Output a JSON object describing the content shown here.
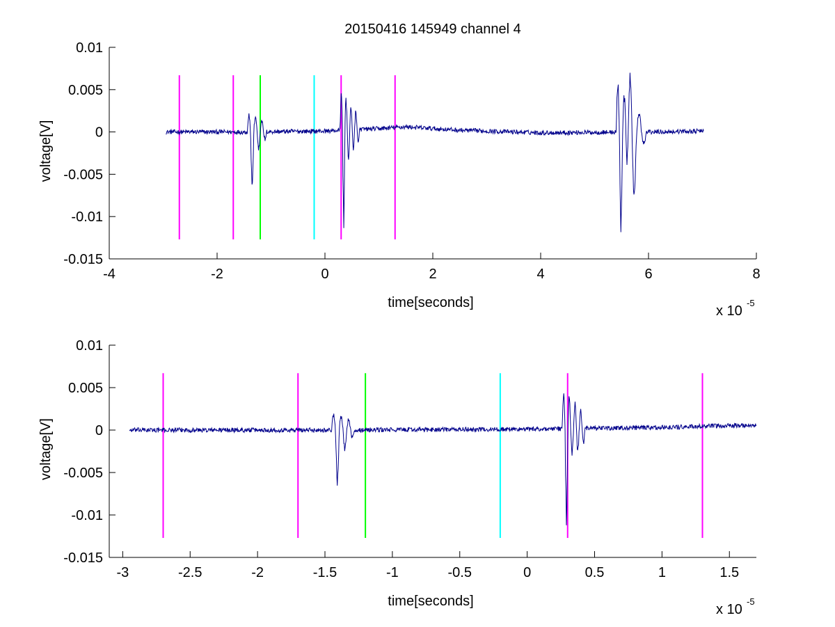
{
  "figure": {
    "title": "20150416 145949 channel 4",
    "colors": {
      "signal": "#00008b",
      "magenta": "#ff00ff",
      "green": "#00ff00",
      "cyan": "#00ffff",
      "axes": "#000000"
    }
  },
  "chart_data": [
    {
      "type": "line",
      "xlabel": "time[seconds]",
      "ylabel": "voltage[V]",
      "x_scale_label": "x 10",
      "x_scale_exponent": "-5",
      "xlim": [
        -4,
        8
      ],
      "ylim": [
        -0.015,
        0.01
      ],
      "xticks": [
        -4,
        -2,
        0,
        2,
        4,
        6,
        8
      ],
      "xtick_labels": [
        "-4",
        "-2",
        "0",
        "2",
        "4",
        "6",
        "8"
      ],
      "yticks": [
        -0.015,
        -0.01,
        -0.005,
        0,
        0.005,
        0.01
      ],
      "ytick_labels": [
        "-0.015",
        "-0.01",
        "-0.005",
        "0",
        "0.005",
        "0.01"
      ],
      "markers": [
        {
          "x": -2.7,
          "ymin": -0.0127,
          "ymax": 0.0067,
          "color": "magenta"
        },
        {
          "x": -1.7,
          "ymin": -0.0127,
          "ymax": 0.0067,
          "color": "magenta"
        },
        {
          "x": -1.2,
          "ymin": -0.0127,
          "ymax": 0.0067,
          "color": "green"
        },
        {
          "x": -0.2,
          "ymin": -0.0127,
          "ymax": 0.0067,
          "color": "cyan"
        },
        {
          "x": 0.3,
          "ymin": -0.0127,
          "ymax": 0.0067,
          "color": "magenta"
        },
        {
          "x": 1.3,
          "ymin": -0.0127,
          "ymax": 0.0067,
          "color": "magenta"
        }
      ],
      "series": [
        {
          "color": "signal",
          "x_range": [
            -2.95,
            7.02
          ],
          "baseline": [
            [
              -2.95,
              0
            ],
            [
              -1.5,
              0
            ],
            [
              0,
              0.0001
            ],
            [
              1.0,
              0.0004
            ],
            [
              1.5,
              0.0006
            ],
            [
              2.5,
              0.0002
            ],
            [
              4,
              -0.0001
            ],
            [
              6,
              0
            ],
            [
              7.02,
              0.0001
            ]
          ],
          "noise": 0.0003,
          "bursts": [
            {
              "x": -1.42,
              "peaks": [
                0.0022,
                -0.0066,
                0.0018,
                -0.0025,
                0.0015,
                -0.001
              ]
            },
            {
              "x": 0.3,
              "peaks": [
                0.0045,
                -0.0115,
                0.004,
                -0.0035,
                0.0032,
                -0.0028,
                0.0025,
                -0.0018
              ]
            },
            {
              "x": 5.42,
              "peaks": [
                0.0062,
                -0.0117,
                0.005,
                -0.0045,
                0.003,
                -0.002
              ]
            },
            {
              "x": 5.62,
              "peaks": [
                0.0053,
                -0.0066,
                0.0025,
                -0.0015
              ]
            }
          ]
        }
      ]
    },
    {
      "type": "line",
      "xlabel": "time[seconds]",
      "ylabel": "voltage[V]",
      "x_scale_label": "x 10",
      "x_scale_exponent": "-5",
      "xlim": [
        -3.1,
        1.7
      ],
      "ylim": [
        -0.015,
        0.01
      ],
      "xticks": [
        -3,
        -2.5,
        -2,
        -1.5,
        -1,
        -0.5,
        0,
        0.5,
        1,
        1.5
      ],
      "xtick_labels": [
        "-3",
        "-2.5",
        "-2",
        "-1.5",
        "-1",
        "-0.5",
        "0",
        "0.5",
        "1",
        "1.5"
      ],
      "yticks": [
        -0.015,
        -0.01,
        -0.005,
        0,
        0.005,
        0.01
      ],
      "ytick_labels": [
        "-0.015",
        "-0.01",
        "-0.005",
        "0",
        "0.005",
        "0.01"
      ],
      "markers": [
        {
          "x": -2.7,
          "ymin": -0.0127,
          "ymax": 0.0067,
          "color": "magenta"
        },
        {
          "x": -1.7,
          "ymin": -0.0127,
          "ymax": 0.0067,
          "color": "magenta"
        },
        {
          "x": -1.2,
          "ymin": -0.0127,
          "ymax": 0.0067,
          "color": "green"
        },
        {
          "x": -0.2,
          "ymin": -0.0127,
          "ymax": 0.0067,
          "color": "cyan"
        },
        {
          "x": 0.3,
          "ymin": -0.0127,
          "ymax": 0.0067,
          "color": "magenta"
        },
        {
          "x": 1.3,
          "ymin": -0.0127,
          "ymax": 0.0067,
          "color": "magenta"
        }
      ],
      "series": [
        {
          "color": "signal",
          "x_range": [
            -2.95,
            1.7
          ],
          "baseline": [
            [
              -2.95,
              0
            ],
            [
              -1.5,
              0
            ],
            [
              0,
              0.0001
            ],
            [
              1.0,
              0.0003
            ],
            [
              1.7,
              0.0006
            ]
          ],
          "noise": 0.0003,
          "bursts": [
            {
              "x": -1.43,
              "peaks": [
                0.0022,
                -0.0066,
                0.0018,
                -0.0025,
                0.0015,
                -0.001
              ]
            },
            {
              "x": 0.28,
              "peaks": [
                0.0045,
                -0.0115,
                0.004,
                -0.0035,
                0.0032,
                -0.0028,
                0.0025,
                -0.0018
              ]
            }
          ]
        }
      ]
    }
  ]
}
